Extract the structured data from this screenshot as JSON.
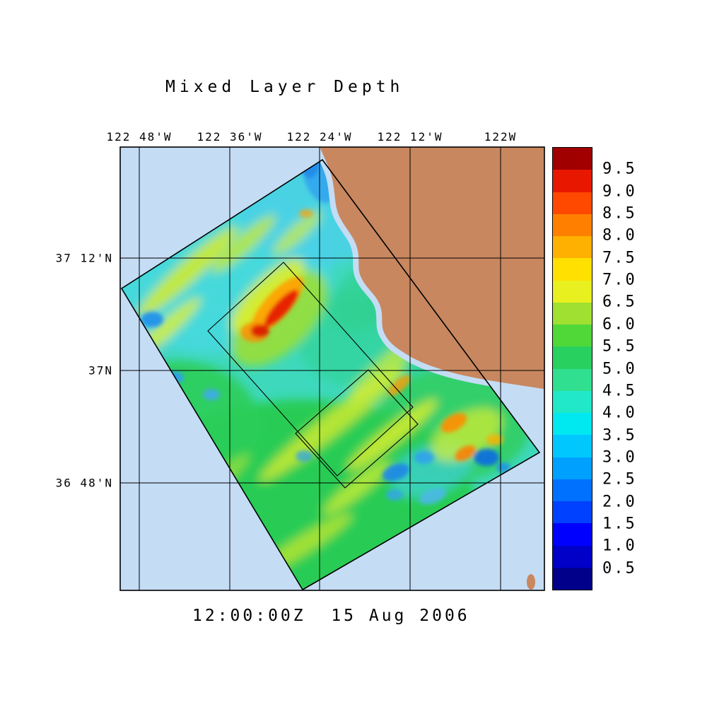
{
  "title": "Mixed Layer Depth",
  "footer_timestamp": "12:00:00Z  15 Aug 2006",
  "axes": {
    "top_longitude_labels": [
      "122 48'W",
      "122 36'W",
      "122 24'W",
      "122 12'W",
      "122W"
    ],
    "left_latitude_labels": [
      "37 12'N",
      "37N",
      "36 48'N"
    ]
  },
  "colorbar": {
    "tick_labels": [
      "9.5",
      "9.0",
      "8.5",
      "8.0",
      "7.5",
      "7.0",
      "6.5",
      "6.0",
      "5.5",
      "5.0",
      "4.5",
      "4.0",
      "3.5",
      "3.0",
      "2.5",
      "2.0",
      "1.5",
      "1.0",
      "0.5"
    ],
    "band_colors_top_to_bottom": [
      "#A00000",
      "#E81800",
      "#FF4800",
      "#FF8000",
      "#FFB000",
      "#FFE000",
      "#E8F020",
      "#A0E030",
      "#50D838",
      "#28D060",
      "#30E090",
      "#20E8C8",
      "#00E8F0",
      "#00C8FF",
      "#00A0FF",
      "#0070FF",
      "#0040FF",
      "#0000FF",
      "#0000C8",
      "#00008B"
    ]
  },
  "map": {
    "ocean_color": "#C4DCF4",
    "land_color": "#C8875F"
  }
}
